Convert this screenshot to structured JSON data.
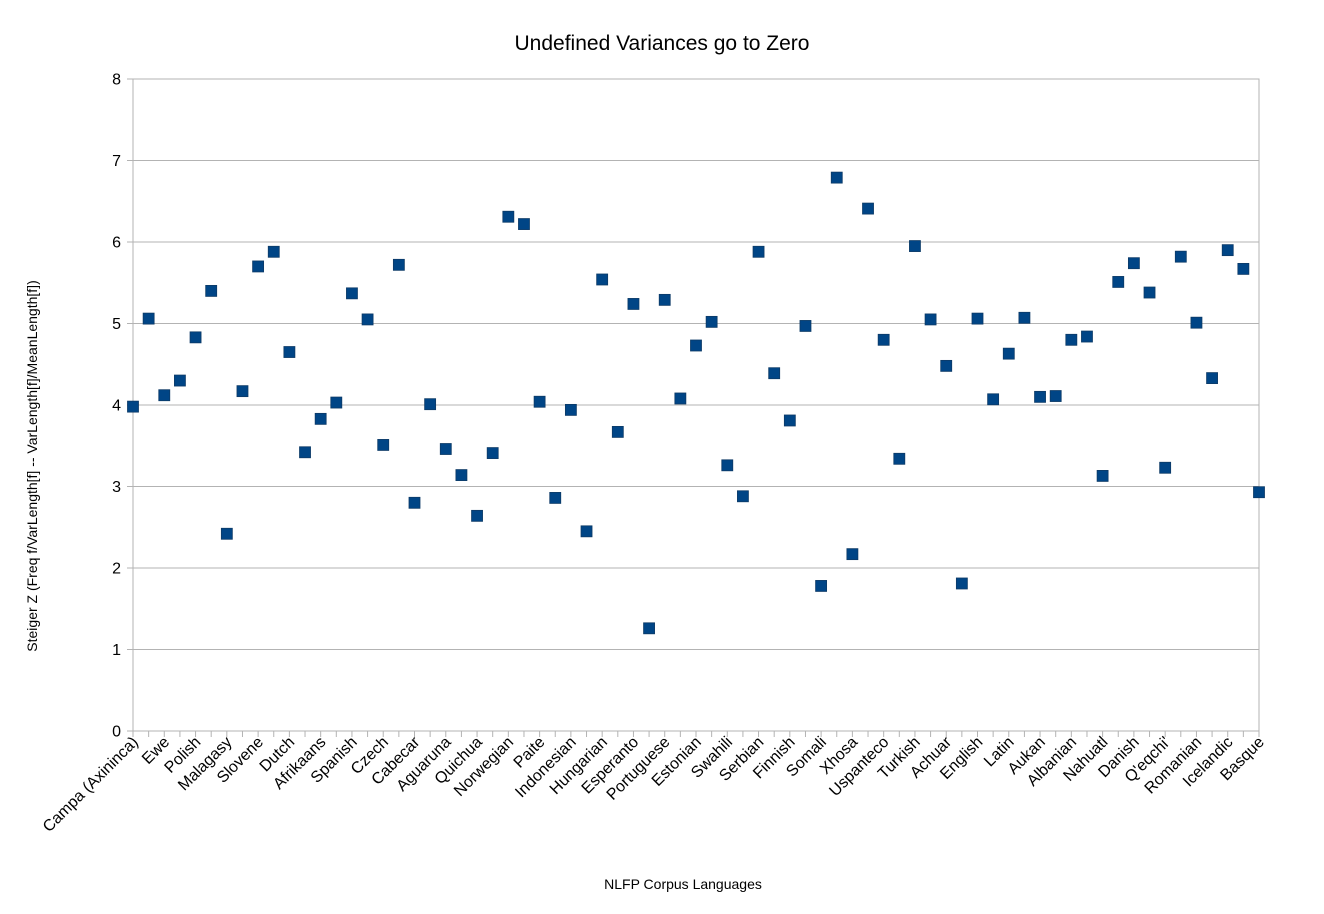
{
  "chart_data": {
    "type": "scatter",
    "title": "Undefined Variances go to Zero",
    "xlabel": "NLFP Corpus Languages",
    "ylabel": "Steiger Z (Freq f/VarLength[f] -- VarLength[f]/MeanLength[f])",
    "ylim": [
      0,
      8
    ],
    "yticks": [
      0,
      1,
      2,
      3,
      4,
      5,
      6,
      7,
      8
    ],
    "grid": true,
    "legend": "none",
    "marker_color": "#004586",
    "category_labels": [
      "Campa (Axininca)",
      "Ewe",
      "Polish",
      "Malagasy",
      "Slovene",
      "Dutch",
      "Afrikaans",
      "Spanish",
      "Czech",
      "Cabecar",
      "Aguaruna",
      "Quichua",
      "Norwegian",
      "Paite",
      "Indonesian",
      "Hungarian",
      "Esperanto",
      "Portuguese",
      "Estonian",
      "Swahili",
      "Serbian",
      "Finnish",
      "Somali",
      "Xhosa",
      "Uspanteco",
      "Turkish",
      "Achuar",
      "English",
      "Latin",
      "Aukan",
      "Albanian",
      "Nahuatl",
      "Danish",
      "Q'eqchi'",
      "Romanian",
      "Icelandic",
      "Basque"
    ],
    "values": [
      3.98,
      5.06,
      4.12,
      4.3,
      4.83,
      5.4,
      2.42,
      4.17,
      5.7,
      5.88,
      4.65,
      3.42,
      3.83,
      4.03,
      5.37,
      5.05,
      3.51,
      5.72,
      2.8,
      4.01,
      3.46,
      3.14,
      2.64,
      3.41,
      6.31,
      6.22,
      4.04,
      2.86,
      3.94,
      2.45,
      5.54,
      3.67,
      5.24,
      1.26,
      5.29,
      4.08,
      4.73,
      5.02,
      3.26,
      2.88,
      5.88,
      4.39,
      3.81,
      4.97,
      1.78,
      6.79,
      2.17,
      6.41,
      4.8,
      3.34,
      5.95,
      5.05,
      4.48,
      1.81,
      5.06,
      4.07,
      4.63,
      5.07,
      4.1,
      4.11,
      4.8,
      4.84,
      3.13,
      5.51,
      5.74,
      5.38,
      3.23,
      5.82,
      5.01,
      4.33,
      5.9,
      5.67,
      2.93
    ]
  }
}
